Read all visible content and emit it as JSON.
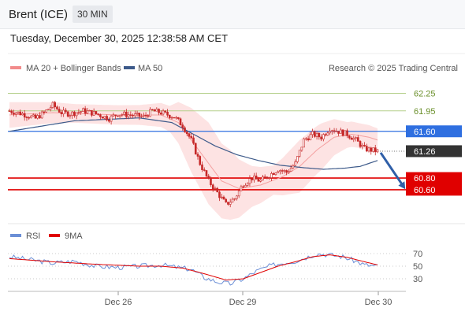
{
  "header": {
    "instrument": "Brent (ICE)",
    "timeframe": "30 MIN"
  },
  "timestamp": "Tuesday, December 30, 2025 12:38:58 AM CET",
  "legend": {
    "bb": "MA 20 + Bollinger Bands",
    "ma50": "MA 50",
    "rsi": "RSI",
    "ma9": "9MA",
    "copyright": "Research © 2025 Trading Central"
  },
  "colors": {
    "price": "#c62828",
    "bb_fill": "#fde0e0",
    "ma50": "#3d5a8a",
    "resistance": "#b5d08b",
    "pivot": "#2f6fe0",
    "support": "#e00000",
    "last": "#333333",
    "rsi": "#6b8fd6",
    "rsi_ma": "#e00000"
  },
  "chart_data": [
    {
      "type": "line",
      "subtype": "candlestick",
      "x_axis": {
        "labels": [
          "Dec 26",
          "Dec 29",
          "Dec 30"
        ]
      },
      "ylim": [
        60.1,
        62.5
      ],
      "levels": [
        {
          "label": "62.25",
          "value": 62.25,
          "kind": "resistance"
        },
        {
          "label": "61.95",
          "value": 61.95,
          "kind": "resistance"
        },
        {
          "label": "61.60",
          "value": 61.6,
          "kind": "pivot"
        },
        {
          "label": "61.26",
          "value": 61.26,
          "kind": "last"
        },
        {
          "label": "60.80",
          "value": 60.8,
          "kind": "support"
        },
        {
          "label": "60.60",
          "value": 60.6,
          "kind": "support"
        }
      ],
      "price_anchors": [
        [
          0,
          61.95
        ],
        [
          6,
          61.9
        ],
        [
          12,
          61.82
        ],
        [
          16,
          61.92
        ],
        [
          20,
          62.05
        ],
        [
          24,
          61.92
        ],
        [
          28,
          61.9
        ],
        [
          34,
          61.95
        ],
        [
          40,
          61.9
        ],
        [
          46,
          61.82
        ],
        [
          50,
          61.9
        ],
        [
          56,
          61.88
        ],
        [
          62,
          61.85
        ],
        [
          66,
          61.95
        ],
        [
          70,
          61.92
        ],
        [
          76,
          61.85
        ],
        [
          80,
          61.7
        ],
        [
          84,
          61.45
        ],
        [
          88,
          61.05
        ],
        [
          92,
          60.75
        ],
        [
          96,
          60.55
        ],
        [
          100,
          60.35
        ],
        [
          104,
          60.45
        ],
        [
          108,
          60.7
        ],
        [
          112,
          60.8
        ],
        [
          116,
          60.75
        ],
        [
          120,
          60.85
        ],
        [
          124,
          60.95
        ],
        [
          128,
          60.9
        ],
        [
          132,
          61.05
        ],
        [
          136,
          61.45
        ],
        [
          140,
          61.55
        ],
        [
          144,
          61.5
        ],
        [
          148,
          61.65
        ],
        [
          152,
          61.6
        ],
        [
          156,
          61.55
        ],
        [
          160,
          61.45
        ],
        [
          164,
          61.3
        ],
        [
          170,
          61.26
        ]
      ],
      "ma50_anchors": [
        [
          0,
          61.6
        ],
        [
          30,
          61.78
        ],
        [
          60,
          61.83
        ],
        [
          75,
          61.75
        ],
        [
          85,
          61.55
        ],
        [
          95,
          61.35
        ],
        [
          105,
          61.2
        ],
        [
          115,
          61.1
        ],
        [
          125,
          61.02
        ],
        [
          135,
          60.98
        ],
        [
          145,
          60.95
        ],
        [
          155,
          60.97
        ],
        [
          162,
          61.0
        ],
        [
          170,
          61.1
        ]
      ],
      "ma20_anchors": [
        [
          0,
          61.88
        ],
        [
          20,
          61.92
        ],
        [
          50,
          61.88
        ],
        [
          70,
          61.88
        ],
        [
          78,
          61.75
        ],
        [
          88,
          61.25
        ],
        [
          98,
          60.75
        ],
        [
          106,
          60.62
        ],
        [
          116,
          60.68
        ],
        [
          126,
          60.82
        ],
        [
          134,
          61.0
        ],
        [
          142,
          61.28
        ],
        [
          150,
          61.5
        ],
        [
          158,
          61.55
        ],
        [
          166,
          61.5
        ],
        [
          170,
          61.45
        ]
      ],
      "bb_width_anchors": [
        [
          0,
          0.22
        ],
        [
          30,
          0.16
        ],
        [
          60,
          0.17
        ],
        [
          74,
          0.22
        ],
        [
          84,
          0.55
        ],
        [
          92,
          0.7
        ],
        [
          102,
          0.6
        ],
        [
          112,
          0.35
        ],
        [
          122,
          0.25
        ],
        [
          134,
          0.45
        ],
        [
          144,
          0.4
        ],
        [
          156,
          0.22
        ],
        [
          170,
          0.2
        ]
      ],
      "forecast_arrow": {
        "from": 61.26,
        "to": 60.6
      }
    },
    {
      "type": "line",
      "series": [
        {
          "name": "RSI"
        },
        {
          "name": "9MA"
        }
      ],
      "y_ticks": [
        70,
        50,
        30
      ],
      "ylim": [
        15,
        85
      ],
      "rsi_anchors": [
        [
          0,
          65
        ],
        [
          10,
          60
        ],
        [
          20,
          55
        ],
        [
          30,
          58
        ],
        [
          40,
          50
        ],
        [
          50,
          48
        ],
        [
          60,
          50
        ],
        [
          70,
          52
        ],
        [
          78,
          48
        ],
        [
          84,
          45
        ],
        [
          90,
          32
        ],
        [
          96,
          25
        ],
        [
          102,
          22
        ],
        [
          108,
          30
        ],
        [
          114,
          42
        ],
        [
          120,
          50
        ],
        [
          126,
          55
        ],
        [
          132,
          58
        ],
        [
          138,
          65
        ],
        [
          142,
          70
        ],
        [
          148,
          68
        ],
        [
          154,
          65
        ],
        [
          160,
          58
        ],
        [
          164,
          52
        ],
        [
          170,
          50
        ]
      ],
      "rsi_ma_anchors": [
        [
          0,
          62
        ],
        [
          20,
          57
        ],
        [
          40,
          53
        ],
        [
          60,
          50
        ],
        [
          70,
          50
        ],
        [
          80,
          47
        ],
        [
          90,
          38
        ],
        [
          100,
          28
        ],
        [
          108,
          30
        ],
        [
          116,
          40
        ],
        [
          124,
          50
        ],
        [
          132,
          57
        ],
        [
          140,
          65
        ],
        [
          148,
          68
        ],
        [
          156,
          64
        ],
        [
          164,
          57
        ],
        [
          170,
          52
        ]
      ]
    }
  ]
}
